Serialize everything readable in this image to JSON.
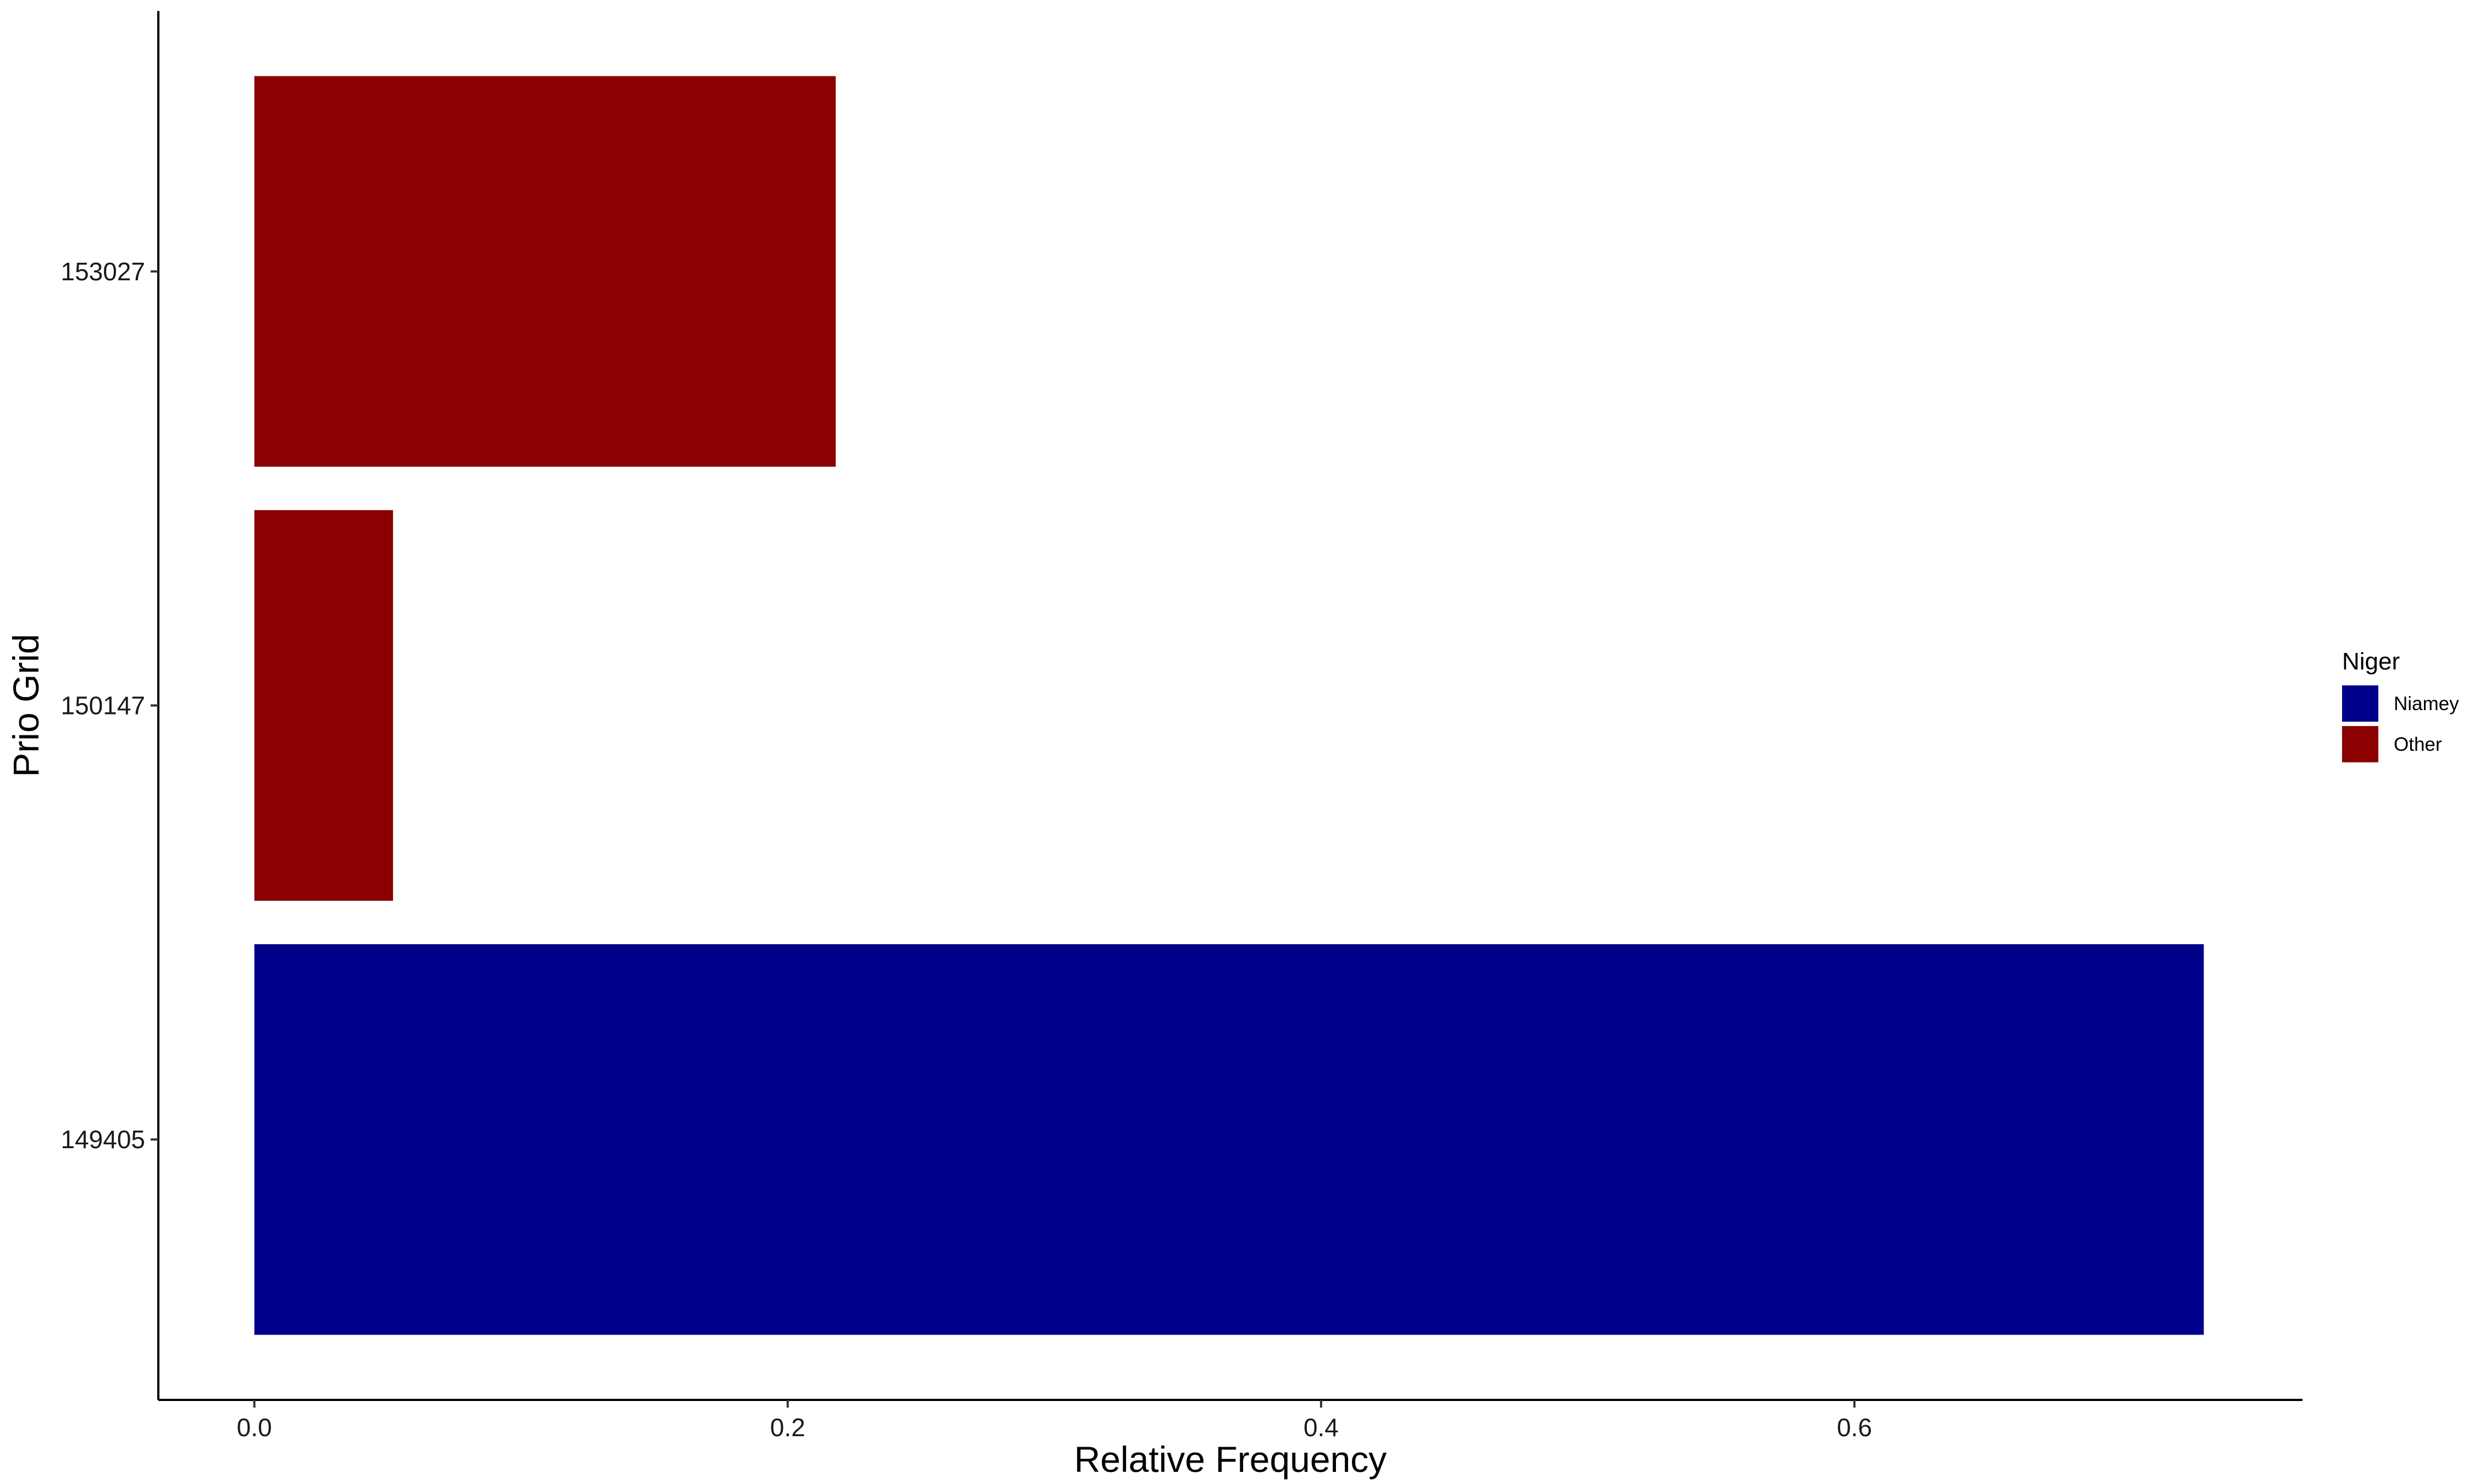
{
  "chart_data": {
    "type": "bar",
    "orientation": "horizontal",
    "xlabel": "Relative Frequency",
    "ylabel": "Prio Grid",
    "categories": [
      "149405",
      "150147",
      "153027"
    ],
    "values": [
      0.731,
      0.052,
      0.218
    ],
    "bar_groups": [
      "Niamey",
      "Other",
      "Other"
    ],
    "xlim": [
      -0.036,
      0.768
    ],
    "x_ticks": [
      0.0,
      0.2,
      0.4,
      0.6
    ],
    "x_tick_labels": [
      "0.0",
      "0.2",
      "0.4",
      "0.6"
    ],
    "grid": false,
    "legend": {
      "title": "Niger",
      "position": "right",
      "entries": [
        {
          "name": "Niamey",
          "color": "#00008b"
        },
        {
          "name": "Other",
          "color": "#8b0000"
        }
      ]
    }
  }
}
